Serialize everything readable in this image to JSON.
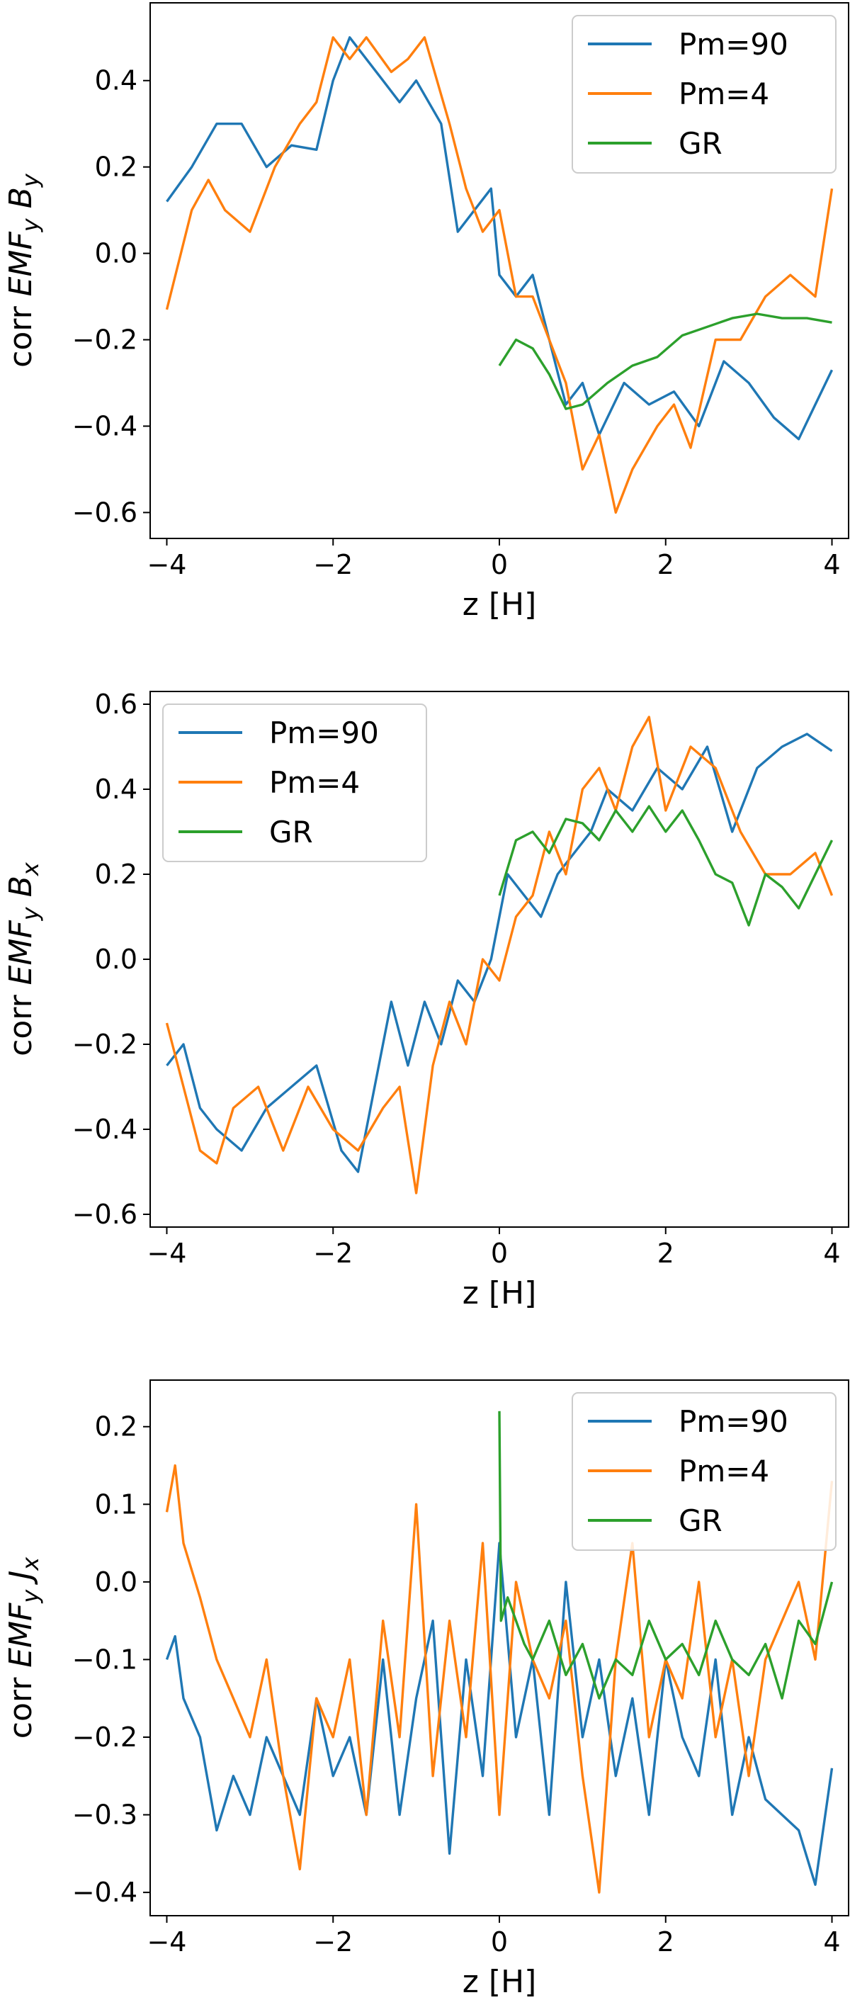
{
  "colors": {
    "Pm=90": "#1f77b4",
    "Pm=4": "#ff7f0e",
    "GR": "#2ca02c"
  },
  "chart_data": [
    {
      "type": "line",
      "xlabel": "z [H]",
      "ylabel": {
        "prefix": "corr",
        "emf": "EMF",
        "emf_sub": "y",
        "field": "B",
        "field_sub": "y"
      },
      "xlim": [
        -4.2,
        4.2
      ],
      "ylim": [
        -0.66,
        0.58
      ],
      "xticks": [
        -4,
        -2,
        0,
        2,
        4
      ],
      "xtick_labels": [
        "−4",
        "−2",
        "0",
        "2",
        "4"
      ],
      "yticks": [
        -0.6,
        -0.4,
        -0.2,
        0.0,
        0.2,
        0.4
      ],
      "ytick_labels": [
        "−0.6",
        "−0.4",
        "−0.2",
        "0.0",
        "0.2",
        "0.4"
      ],
      "legend_position": "top-right",
      "series": [
        {
          "name": "Pm=90",
          "x": [
            -4.0,
            -3.7,
            -3.4,
            -3.1,
            -2.8,
            -2.5,
            -2.2,
            -2.0,
            -1.8,
            -1.6,
            -1.4,
            -1.2,
            -1.0,
            -0.7,
            -0.5,
            -0.3,
            -0.1,
            0.0,
            0.2,
            0.4,
            0.6,
            0.8,
            1.0,
            1.2,
            1.5,
            1.8,
            2.1,
            2.4,
            2.7,
            3.0,
            3.3,
            3.6,
            3.8,
            4.0
          ],
          "values": [
            0.12,
            0.2,
            0.3,
            0.3,
            0.2,
            0.25,
            0.24,
            0.4,
            0.5,
            0.45,
            0.4,
            0.35,
            0.4,
            0.3,
            0.05,
            0.1,
            0.15,
            -0.05,
            -0.1,
            -0.05,
            -0.2,
            -0.35,
            -0.3,
            -0.42,
            -0.3,
            -0.35,
            -0.32,
            -0.4,
            -0.25,
            -0.3,
            -0.38,
            -0.43,
            -0.35,
            -0.27
          ]
        },
        {
          "name": "Pm=4",
          "x": [
            -4.0,
            -3.7,
            -3.5,
            -3.3,
            -3.0,
            -2.7,
            -2.4,
            -2.2,
            -2.0,
            -1.8,
            -1.6,
            -1.3,
            -1.1,
            -0.9,
            -0.6,
            -0.4,
            -0.2,
            0.0,
            0.2,
            0.4,
            0.6,
            0.8,
            1.0,
            1.2,
            1.4,
            1.6,
            1.9,
            2.1,
            2.3,
            2.6,
            2.9,
            3.2,
            3.5,
            3.8,
            4.0
          ],
          "values": [
            -0.13,
            0.1,
            0.17,
            0.1,
            0.05,
            0.2,
            0.3,
            0.35,
            0.5,
            0.45,
            0.5,
            0.42,
            0.45,
            0.5,
            0.3,
            0.15,
            0.05,
            0.1,
            -0.1,
            -0.1,
            -0.2,
            -0.3,
            -0.5,
            -0.42,
            -0.6,
            -0.5,
            -0.4,
            -0.35,
            -0.45,
            -0.2,
            -0.2,
            -0.1,
            -0.05,
            -0.1,
            0.15
          ]
        },
        {
          "name": "GR",
          "x": [
            0.0,
            0.2,
            0.4,
            0.6,
            0.8,
            1.0,
            1.3,
            1.6,
            1.9,
            2.2,
            2.5,
            2.8,
            3.1,
            3.4,
            3.7,
            4.0
          ],
          "values": [
            -0.26,
            -0.2,
            -0.22,
            -0.28,
            -0.36,
            -0.35,
            -0.3,
            -0.26,
            -0.24,
            -0.19,
            -0.17,
            -0.15,
            -0.14,
            -0.15,
            -0.15,
            -0.16
          ]
        }
      ]
    },
    {
      "type": "line",
      "xlabel": "z [H]",
      "ylabel": {
        "prefix": "corr",
        "emf": "EMF",
        "emf_sub": "y",
        "field": "B",
        "field_sub": "x"
      },
      "xlim": [
        -4.2,
        4.2
      ],
      "ylim": [
        -0.63,
        0.63
      ],
      "xticks": [
        -4,
        -2,
        0,
        2,
        4
      ],
      "xtick_labels": [
        "−4",
        "−2",
        "0",
        "2",
        "4"
      ],
      "yticks": [
        -0.6,
        -0.4,
        -0.2,
        0.0,
        0.2,
        0.4,
        0.6
      ],
      "ytick_labels": [
        "−0.6",
        "−0.4",
        "−0.2",
        "0.0",
        "0.2",
        "0.4",
        "0.6"
      ],
      "legend_position": "top-left",
      "series": [
        {
          "name": "Pm=90",
          "x": [
            -4.0,
            -3.8,
            -3.6,
            -3.4,
            -3.1,
            -2.8,
            -2.5,
            -2.2,
            -1.9,
            -1.7,
            -1.5,
            -1.3,
            -1.1,
            -0.9,
            -0.7,
            -0.5,
            -0.3,
            -0.1,
            0.1,
            0.3,
            0.5,
            0.7,
            0.9,
            1.1,
            1.3,
            1.6,
            1.9,
            2.2,
            2.5,
            2.8,
            3.1,
            3.4,
            3.7,
            4.0
          ],
          "values": [
            -0.25,
            -0.2,
            -0.35,
            -0.4,
            -0.45,
            -0.35,
            -0.3,
            -0.25,
            -0.45,
            -0.5,
            -0.3,
            -0.1,
            -0.25,
            -0.1,
            -0.2,
            -0.05,
            -0.1,
            0.0,
            0.2,
            0.15,
            0.1,
            0.2,
            0.25,
            0.3,
            0.4,
            0.35,
            0.45,
            0.4,
            0.5,
            0.3,
            0.45,
            0.5,
            0.53,
            0.49
          ]
        },
        {
          "name": "Pm=4",
          "x": [
            -4.0,
            -3.8,
            -3.6,
            -3.4,
            -3.2,
            -2.9,
            -2.6,
            -2.3,
            -2.0,
            -1.7,
            -1.4,
            -1.2,
            -1.0,
            -0.8,
            -0.6,
            -0.4,
            -0.2,
            0.0,
            0.2,
            0.4,
            0.6,
            0.8,
            1.0,
            1.2,
            1.4,
            1.6,
            1.8,
            2.0,
            2.3,
            2.6,
            2.9,
            3.2,
            3.5,
            3.8,
            4.0
          ],
          "values": [
            -0.15,
            -0.3,
            -0.45,
            -0.48,
            -0.35,
            -0.3,
            -0.45,
            -0.3,
            -0.4,
            -0.45,
            -0.35,
            -0.3,
            -0.55,
            -0.25,
            -0.1,
            -0.2,
            0.0,
            -0.05,
            0.1,
            0.15,
            0.3,
            0.2,
            0.4,
            0.45,
            0.35,
            0.5,
            0.57,
            0.35,
            0.5,
            0.45,
            0.3,
            0.2,
            0.2,
            0.25,
            0.15
          ]
        },
        {
          "name": "GR",
          "x": [
            0.0,
            0.2,
            0.4,
            0.6,
            0.8,
            1.0,
            1.2,
            1.4,
            1.6,
            1.8,
            2.0,
            2.2,
            2.4,
            2.6,
            2.8,
            3.0,
            3.2,
            3.4,
            3.6,
            3.8,
            4.0
          ],
          "values": [
            0.15,
            0.28,
            0.3,
            0.25,
            0.33,
            0.32,
            0.28,
            0.35,
            0.3,
            0.36,
            0.3,
            0.35,
            0.28,
            0.2,
            0.18,
            0.08,
            0.2,
            0.17,
            0.12,
            0.2,
            0.28
          ]
        }
      ]
    },
    {
      "type": "line",
      "xlabel": "z [H]",
      "ylabel": {
        "prefix": "corr",
        "emf": "EMF",
        "emf_sub": "y",
        "field": "J",
        "field_sub": "x"
      },
      "xlim": [
        -4.2,
        4.2
      ],
      "ylim": [
        -0.43,
        0.26
      ],
      "xticks": [
        -4,
        -2,
        0,
        2,
        4
      ],
      "xtick_labels": [
        "−4",
        "−2",
        "0",
        "2",
        "4"
      ],
      "yticks": [
        -0.4,
        -0.3,
        -0.2,
        -0.1,
        0.0,
        0.1,
        0.2
      ],
      "ytick_labels": [
        "−0.4",
        "−0.3",
        "−0.2",
        "−0.1",
        "0.0",
        "0.1",
        "0.2"
      ],
      "legend_position": "top-right",
      "series": [
        {
          "name": "Pm=90",
          "x": [
            -4.0,
            -3.9,
            -3.8,
            -3.6,
            -3.4,
            -3.2,
            -3.0,
            -2.8,
            -2.6,
            -2.4,
            -2.2,
            -2.0,
            -1.8,
            -1.6,
            -1.4,
            -1.2,
            -1.0,
            -0.8,
            -0.6,
            -0.4,
            -0.2,
            0.0,
            0.2,
            0.4,
            0.6,
            0.8,
            1.0,
            1.2,
            1.4,
            1.6,
            1.8,
            2.0,
            2.2,
            2.4,
            2.6,
            2.8,
            3.0,
            3.2,
            3.4,
            3.6,
            3.8,
            4.0
          ],
          "values": [
            -0.1,
            -0.07,
            -0.15,
            -0.2,
            -0.32,
            -0.25,
            -0.3,
            -0.2,
            -0.25,
            -0.3,
            -0.15,
            -0.25,
            -0.2,
            -0.3,
            -0.1,
            -0.3,
            -0.15,
            -0.05,
            -0.35,
            -0.1,
            -0.25,
            0.05,
            -0.2,
            -0.1,
            -0.3,
            0.0,
            -0.2,
            -0.1,
            -0.25,
            -0.15,
            -0.3,
            -0.1,
            -0.2,
            -0.25,
            -0.1,
            -0.3,
            -0.2,
            -0.28,
            -0.3,
            -0.32,
            -0.39,
            -0.24
          ]
        },
        {
          "name": "Pm=4",
          "x": [
            -4.0,
            -3.9,
            -3.8,
            -3.6,
            -3.4,
            -3.2,
            -3.0,
            -2.8,
            -2.6,
            -2.4,
            -2.2,
            -2.0,
            -1.8,
            -1.6,
            -1.4,
            -1.2,
            -1.0,
            -0.8,
            -0.6,
            -0.4,
            -0.2,
            0.0,
            0.2,
            0.4,
            0.6,
            0.8,
            1.0,
            1.2,
            1.4,
            1.6,
            1.8,
            2.0,
            2.2,
            2.4,
            2.6,
            2.8,
            3.0,
            3.2,
            3.4,
            3.6,
            3.8,
            4.0
          ],
          "values": [
            0.09,
            0.15,
            0.05,
            -0.02,
            -0.1,
            -0.15,
            -0.2,
            -0.1,
            -0.25,
            -0.37,
            -0.15,
            -0.2,
            -0.1,
            -0.3,
            -0.05,
            -0.2,
            0.1,
            -0.25,
            -0.05,
            -0.2,
            0.05,
            -0.3,
            0.0,
            -0.1,
            -0.15,
            -0.05,
            -0.25,
            -0.4,
            -0.1,
            0.05,
            -0.2,
            -0.1,
            -0.15,
            0.0,
            -0.2,
            -0.1,
            -0.25,
            -0.1,
            -0.05,
            0.0,
            -0.1,
            0.13
          ]
        },
        {
          "name": "GR",
          "x": [
            0.0,
            0.02,
            0.1,
            0.2,
            0.3,
            0.4,
            0.6,
            0.8,
            1.0,
            1.2,
            1.4,
            1.6,
            1.8,
            2.0,
            2.2,
            2.4,
            2.6,
            2.8,
            3.0,
            3.2,
            3.4,
            3.6,
            3.8,
            4.0
          ],
          "values": [
            0.22,
            -0.05,
            -0.02,
            -0.05,
            -0.08,
            -0.1,
            -0.05,
            -0.12,
            -0.08,
            -0.15,
            -0.1,
            -0.12,
            -0.05,
            -0.1,
            -0.08,
            -0.12,
            -0.05,
            -0.1,
            -0.12,
            -0.08,
            -0.15,
            -0.05,
            -0.08,
            0.0
          ]
        }
      ]
    }
  ]
}
